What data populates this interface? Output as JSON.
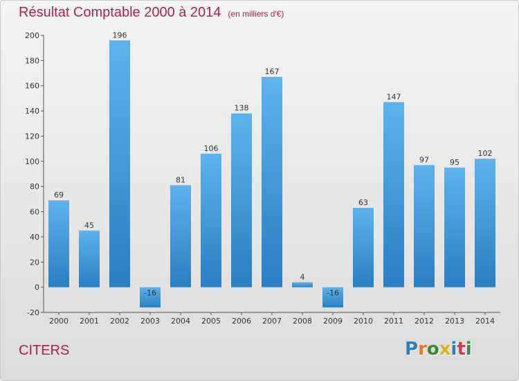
{
  "header": {
    "title": "Résultat Comptable 2000 à 2014",
    "subtitle": "(en milliers d'€)"
  },
  "footer": {
    "place": "CITERS",
    "logo_text": "Proxiti"
  },
  "colors": {
    "title": "#b02055",
    "bar_top": "#5db3ec",
    "bar_bottom": "#2a7ec2",
    "logo_letters": [
      "#2c7fc0",
      "#e87722",
      "#3a8a3a",
      "#e0b020",
      "#2c7fc0",
      "#d23c4b",
      "#3a8a3a"
    ]
  },
  "chart_data": {
    "type": "bar",
    "title": "Résultat Comptable 2000 à 2014",
    "xlabel": "",
    "ylabel": "",
    "categories": [
      "2000",
      "2001",
      "2002",
      "2003",
      "2004",
      "2005",
      "2006",
      "2007",
      "2008",
      "2009",
      "2010",
      "2011",
      "2012",
      "2013",
      "2014"
    ],
    "values": [
      69,
      45,
      196,
      -16,
      81,
      106,
      138,
      167,
      4,
      -16,
      63,
      147,
      97,
      95,
      102
    ],
    "ylim": [
      -20,
      200
    ],
    "yticks": [
      -20,
      0,
      20,
      40,
      60,
      80,
      100,
      120,
      140,
      160,
      180,
      200
    ],
    "grid": false,
    "legend": "none"
  }
}
